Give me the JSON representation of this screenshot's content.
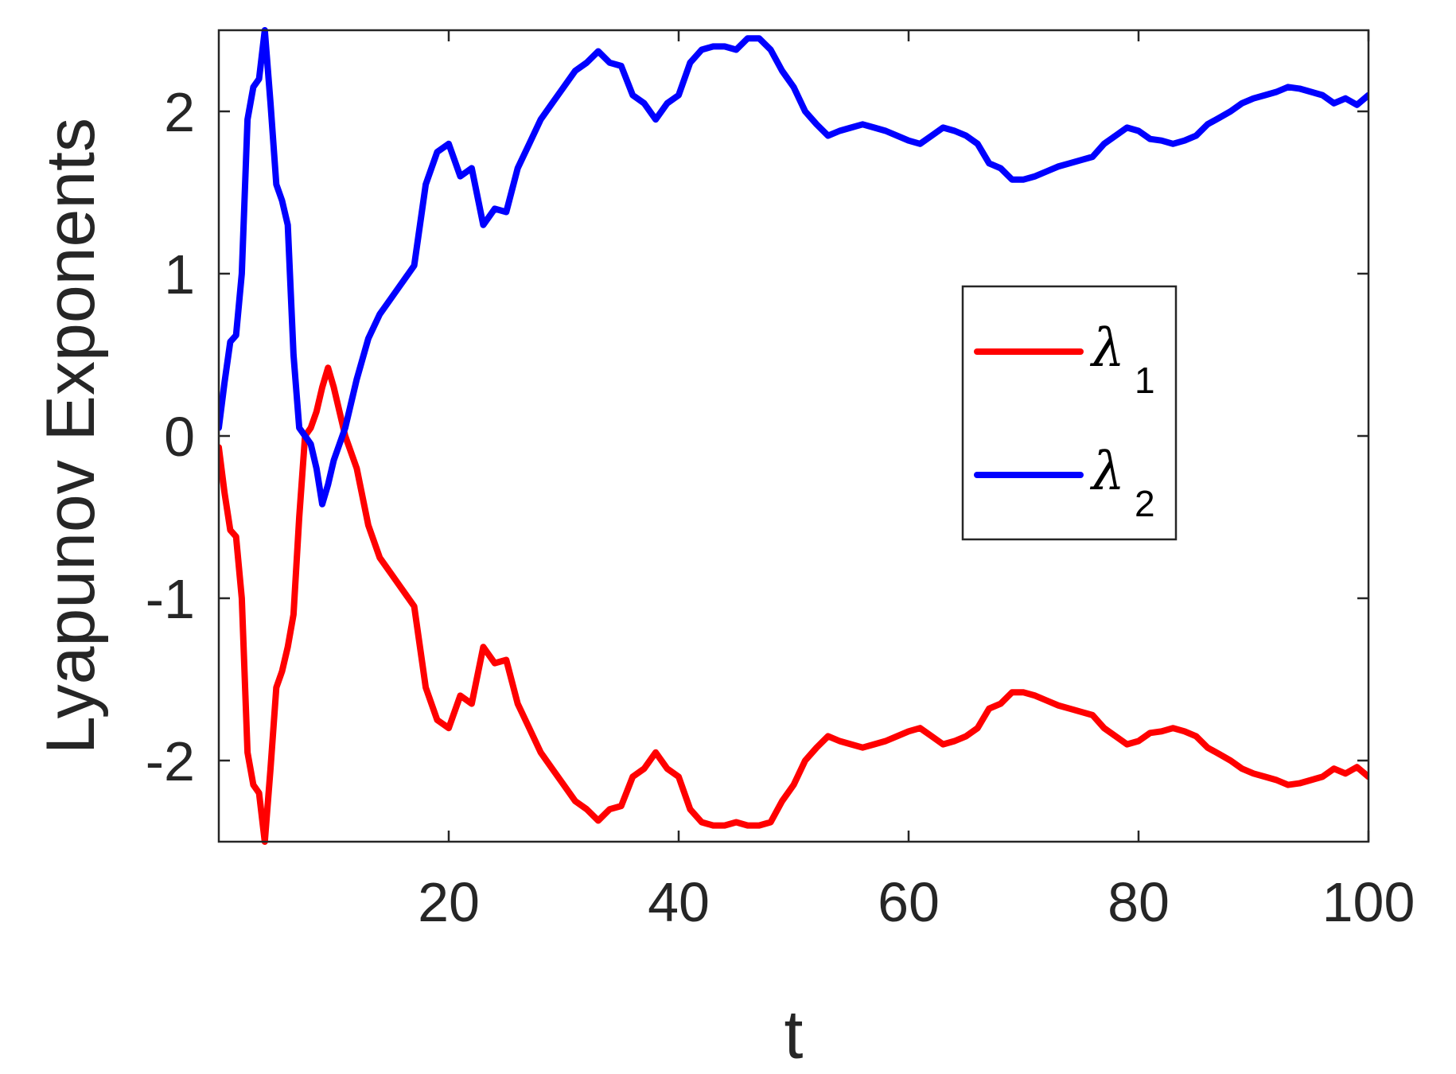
{
  "chart_data": {
    "type": "line",
    "title": "",
    "xlabel": "t",
    "ylabel": "Lyapunov Exponents",
    "xlim": [
      0,
      100
    ],
    "ylim": [
      -2.5,
      2.5
    ],
    "xticks": [
      20,
      40,
      60,
      80,
      100
    ],
    "xtick_labels": [
      "20",
      "40",
      "60",
      "80",
      "100"
    ],
    "yticks": [
      -2,
      -1,
      0,
      1,
      2
    ],
    "ytick_labels": [
      "-2",
      "-1",
      "0",
      "1",
      "2"
    ],
    "grid": false,
    "legend_position": "right",
    "series": [
      {
        "name": "λ1",
        "legend_symbol": "λ",
        "legend_subscript": "1",
        "color": "#ff0000",
        "x": [
          0,
          0.5,
          1,
          1.5,
          2,
          2.5,
          3,
          3.5,
          4,
          4.5,
          5,
          5.5,
          6,
          6.5,
          7,
          7.5,
          8,
          8.5,
          9,
          9.5,
          10,
          11,
          12,
          13,
          14,
          15,
          16,
          17,
          18,
          19,
          20,
          21,
          22,
          23,
          24,
          25,
          26,
          27,
          28,
          29,
          30,
          31,
          32,
          33,
          34,
          35,
          36,
          37,
          38,
          39,
          40,
          41,
          42,
          43,
          44,
          45,
          46,
          47,
          48,
          49,
          50,
          51,
          52,
          53,
          54,
          55,
          56,
          57,
          58,
          59,
          60,
          61,
          62,
          63,
          64,
          65,
          66,
          67,
          68,
          69,
          70,
          71,
          72,
          73,
          74,
          75,
          76,
          77,
          78,
          79,
          80,
          81,
          82,
          83,
          84,
          85,
          86,
          87,
          88,
          89,
          90,
          91,
          92,
          93,
          94,
          95,
          96,
          97,
          98,
          99,
          100
        ],
        "y": [
          -0.07,
          -0.35,
          -0.58,
          -0.62,
          -1.0,
          -1.95,
          -2.15,
          -2.2,
          -2.5,
          -2.05,
          -1.55,
          -1.45,
          -1.3,
          -1.1,
          -0.5,
          0.0,
          0.05,
          0.15,
          0.3,
          0.42,
          0.3,
          0.0,
          -0.2,
          -0.55,
          -0.75,
          -0.85,
          -0.95,
          -1.05,
          -1.55,
          -1.75,
          -1.8,
          -1.6,
          -1.65,
          -1.3,
          -1.4,
          -1.38,
          -1.65,
          -1.8,
          -1.95,
          -2.05,
          -2.15,
          -2.25,
          -2.3,
          -2.37,
          -2.3,
          -2.28,
          -2.1,
          -2.05,
          -1.95,
          -2.05,
          -2.1,
          -2.3,
          -2.38,
          -2.4,
          -2.4,
          -2.38,
          -2.4,
          -2.4,
          -2.38,
          -2.25,
          -2.15,
          -2.0,
          -1.92,
          -1.85,
          -1.88,
          -1.9,
          -1.92,
          -1.9,
          -1.88,
          -1.85,
          -1.82,
          -1.8,
          -1.85,
          -1.9,
          -1.88,
          -1.85,
          -1.8,
          -1.68,
          -1.65,
          -1.58,
          -1.58,
          -1.6,
          -1.63,
          -1.66,
          -1.68,
          -1.7,
          -1.72,
          -1.8,
          -1.85,
          -1.9,
          -1.88,
          -1.83,
          -1.82,
          -1.8,
          -1.82,
          -1.85,
          -1.92,
          -1.96,
          -2.0,
          -2.05,
          -2.08,
          -2.1,
          -2.12,
          -2.15,
          -2.14,
          -2.12,
          -2.1,
          -2.05,
          -2.08,
          -2.04,
          -2.1
        ]
      },
      {
        "name": "λ2",
        "legend_symbol": "λ",
        "legend_subscript": "2",
        "color": "#0000ff",
        "x": [
          0,
          0.5,
          1,
          1.5,
          2,
          2.5,
          3,
          3.5,
          4,
          4.5,
          5,
          5.5,
          6,
          6.5,
          7,
          7.5,
          8,
          8.5,
          9,
          9.5,
          10,
          11,
          12,
          13,
          14,
          15,
          16,
          17,
          18,
          19,
          20,
          21,
          22,
          23,
          24,
          25,
          26,
          27,
          28,
          29,
          30,
          31,
          32,
          33,
          34,
          35,
          36,
          37,
          38,
          39,
          40,
          41,
          42,
          43,
          44,
          45,
          46,
          47,
          48,
          49,
          50,
          51,
          52,
          53,
          54,
          55,
          56,
          57,
          58,
          59,
          60,
          61,
          62,
          63,
          64,
          65,
          66,
          67,
          68,
          69,
          70,
          71,
          72,
          73,
          74,
          75,
          76,
          77,
          78,
          79,
          80,
          81,
          82,
          83,
          84,
          85,
          86,
          87,
          88,
          89,
          90,
          91,
          92,
          93,
          94,
          95,
          96,
          97,
          98,
          99,
          100
        ],
        "y": [
          0.05,
          0.33,
          0.58,
          0.62,
          1.0,
          1.95,
          2.15,
          2.2,
          2.5,
          2.05,
          1.55,
          1.45,
          1.3,
          0.5,
          0.05,
          0.0,
          -0.05,
          -0.2,
          -0.42,
          -0.3,
          -0.15,
          0.05,
          0.35,
          0.6,
          0.75,
          0.85,
          0.95,
          1.05,
          1.55,
          1.75,
          1.8,
          1.6,
          1.65,
          1.3,
          1.4,
          1.38,
          1.65,
          1.8,
          1.95,
          2.05,
          2.15,
          2.25,
          2.3,
          2.37,
          2.3,
          2.28,
          2.1,
          2.05,
          1.95,
          2.05,
          2.1,
          2.3,
          2.38,
          2.4,
          2.4,
          2.38,
          2.45,
          2.45,
          2.38,
          2.25,
          2.15,
          2.0,
          1.92,
          1.85,
          1.88,
          1.9,
          1.92,
          1.9,
          1.88,
          1.85,
          1.82,
          1.8,
          1.85,
          1.9,
          1.88,
          1.85,
          1.8,
          1.68,
          1.65,
          1.58,
          1.58,
          1.6,
          1.63,
          1.66,
          1.68,
          1.7,
          1.72,
          1.8,
          1.85,
          1.9,
          1.88,
          1.83,
          1.82,
          1.8,
          1.82,
          1.85,
          1.92,
          1.96,
          2.0,
          2.05,
          2.08,
          2.1,
          2.12,
          2.15,
          2.14,
          2.12,
          2.1,
          2.05,
          2.08,
          2.04,
          2.1
        ]
      }
    ]
  }
}
